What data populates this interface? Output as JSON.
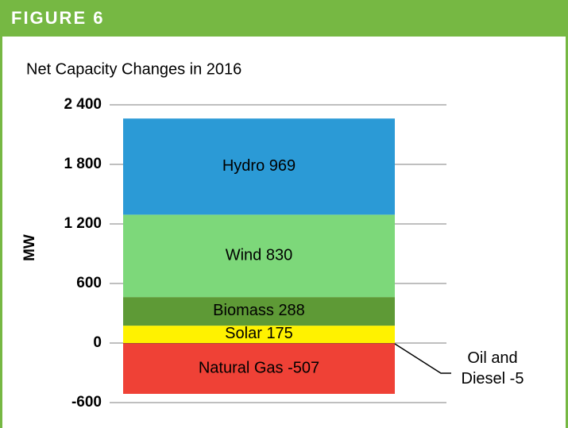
{
  "header": "FIGURE 6",
  "chart_data": {
    "type": "bar",
    "stacked": true,
    "title": "Net Capacity Changes in 2016",
    "ylabel": "MW",
    "categories": [
      null
    ],
    "series": [
      {
        "name": "Oil and Diesel",
        "color": "#7a2a1e",
        "values": [
          -5
        ]
      },
      {
        "name": "Natural Gas",
        "color": "#ef4136",
        "values": [
          -507
        ]
      },
      {
        "name": "Solar",
        "color": "#fff200",
        "values": [
          175
        ]
      },
      {
        "name": "Biomass",
        "color": "#5e9a36",
        "values": [
          288
        ]
      },
      {
        "name": "Wind",
        "color": "#7dd87a",
        "values": [
          830
        ]
      },
      {
        "name": "Hydro",
        "color": "#2b9ad6",
        "values": [
          969
        ]
      }
    ],
    "ylim": [
      -600,
      2400
    ],
    "yticks": [
      -600,
      0,
      600,
      {
        "value": 1200,
        "label": "1 200"
      },
      {
        "value": 1800,
        "label": "1 800"
      },
      {
        "value": 2400,
        "label": "2 400"
      }
    ],
    "grid": true
  }
}
